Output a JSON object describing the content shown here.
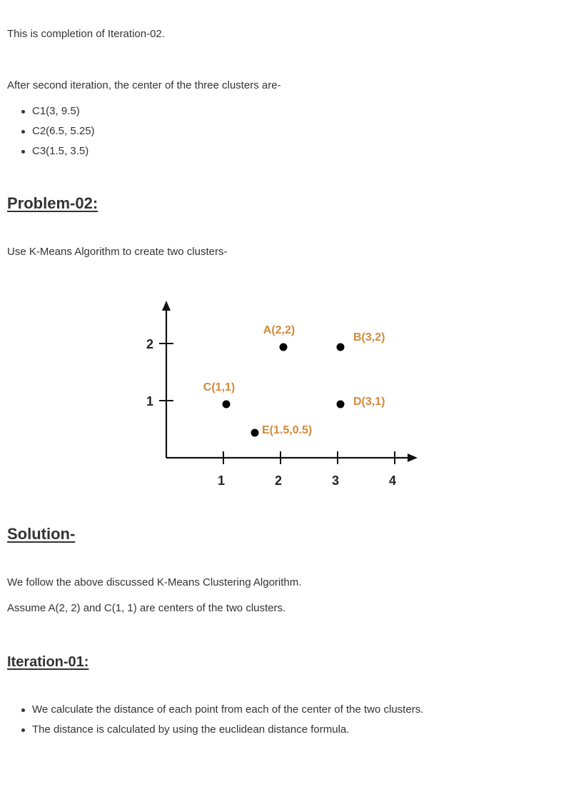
{
  "intro": {
    "completion_text": "This is completion of Iteration-02.",
    "after_text": "After second iteration, the center of the three clusters are-",
    "centers": [
      "C1(3, 9.5)",
      "C2(6.5, 5.25)",
      "C3(1.5, 3.5)"
    ]
  },
  "problem": {
    "heading": "Problem-02:",
    "text": "Use K-Means Algorithm to create two clusters-"
  },
  "chart_data": {
    "type": "scatter",
    "title": "",
    "xlabel": "",
    "ylabel": "",
    "xlim": [
      0,
      4.4
    ],
    "ylim": [
      0,
      2.8
    ],
    "x_ticks": [
      "1",
      "2",
      "3",
      "4"
    ],
    "y_ticks": [
      "1",
      "2"
    ],
    "grid": false,
    "label_color": "#d28a3c",
    "point_color": "#000000",
    "points": [
      {
        "label": "A(2,2)",
        "x": 2,
        "y": 2
      },
      {
        "label": "B(3,2)",
        "x": 3,
        "y": 2
      },
      {
        "label": "C(1,1)",
        "x": 1,
        "y": 1
      },
      {
        "label": "D(3,1)",
        "x": 3,
        "y": 1
      },
      {
        "label": "E(1.5,0.5)",
        "x": 1.5,
        "y": 0.5
      }
    ]
  },
  "solution": {
    "heading": "Solution-",
    "line1": "We follow the above discussed K-Means Clustering Algorithm.",
    "line2": "Assume A(2, 2) and C(1, 1) are centers of the two clusters."
  },
  "iteration": {
    "heading": "Iteration-01:",
    "bullets": [
      "We calculate the distance of each point from each of the center of the two clusters.",
      "The distance is calculated by using the euclidean distance formula."
    ]
  }
}
